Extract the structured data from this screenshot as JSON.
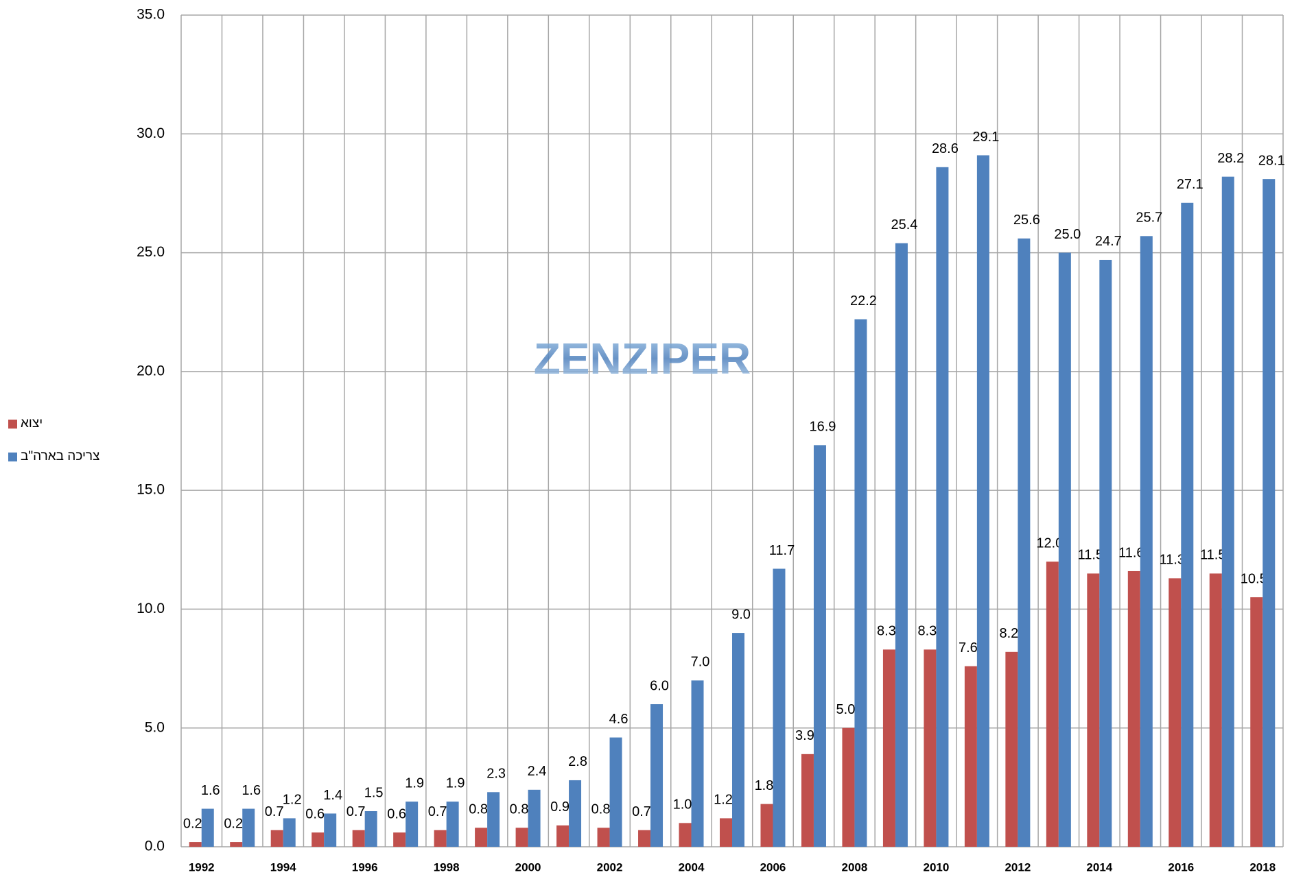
{
  "chart_data": {
    "type": "bar",
    "watermark": "ZENZIPER",
    "categories": [
      "1992",
      null,
      "1994",
      null,
      "1996",
      null,
      "1998",
      null,
      "2000",
      null,
      "2002",
      null,
      "2004",
      null,
      "2006",
      null,
      "2008",
      null,
      "2010",
      null,
      "2012",
      null,
      "2014",
      null,
      "2016",
      null,
      "2018"
    ],
    "series": [
      {
        "name": "יצוא",
        "color": "#c0504d",
        "values": [
          0.2,
          0.2,
          0.7,
          0.6,
          0.7,
          0.6,
          0.7,
          0.8,
          0.8,
          0.9,
          0.8,
          0.7,
          1.0,
          1.2,
          1.8,
          3.9,
          5.0,
          8.3,
          8.3,
          7.6,
          8.2,
          12.0,
          11.5,
          11.6,
          11.3,
          11.5,
          10.5
        ],
        "value_labels": [
          "0.2",
          "0.2",
          "0.7",
          "0.6",
          "0.7",
          "0.6",
          "0.7",
          "0.8",
          "0.8",
          "0.9",
          "0.8",
          "0.7",
          "1.0",
          "1.2",
          "1.8",
          "3.9",
          "5.0",
          "8.3",
          "8.3",
          "7.6",
          "8.2",
          "12.0",
          "11.5",
          "11.6",
          "11.3",
          "11.5",
          "10.5"
        ]
      },
      {
        "name": "צריכה בארה\"ב",
        "color": "#4f81bd",
        "values": [
          1.6,
          1.6,
          1.2,
          1.4,
          1.5,
          1.9,
          1.9,
          2.3,
          2.4,
          2.8,
          4.6,
          6.0,
          7.0,
          9.0,
          11.7,
          16.9,
          22.2,
          25.4,
          28.6,
          29.1,
          25.6,
          25.0,
          24.7,
          25.7,
          27.1,
          28.2,
          28.1
        ],
        "value_labels": [
          "1.6",
          "1.6",
          "1.2",
          "1.4",
          "1.5",
          "1.9",
          "1.9",
          "2.3",
          "2.4",
          "2.8",
          "4.6",
          "6.0",
          "7.0",
          "9.0",
          "11.7",
          "16.9",
          "22.2",
          "25.4",
          "28.6",
          "29.1",
          "25.6",
          "25.0",
          "24.7",
          "25.7",
          "27.1",
          "28.2",
          "28.1"
        ]
      }
    ],
    "ylim": [
      0,
      35
    ],
    "yticks": [
      {
        "value": 0,
        "label": "0.0"
      },
      {
        "value": 5,
        "label": "5.0"
      },
      {
        "value": 10,
        "label": "10.0"
      },
      {
        "value": 15,
        "label": "15.0"
      },
      {
        "value": 20,
        "label": "20.0"
      },
      {
        "value": 25,
        "label": "25.0"
      },
      {
        "value": 30,
        "label": "30.0"
      },
      {
        "value": 35,
        "label": "35.0"
      }
    ],
    "grid": true,
    "legend": "left"
  }
}
